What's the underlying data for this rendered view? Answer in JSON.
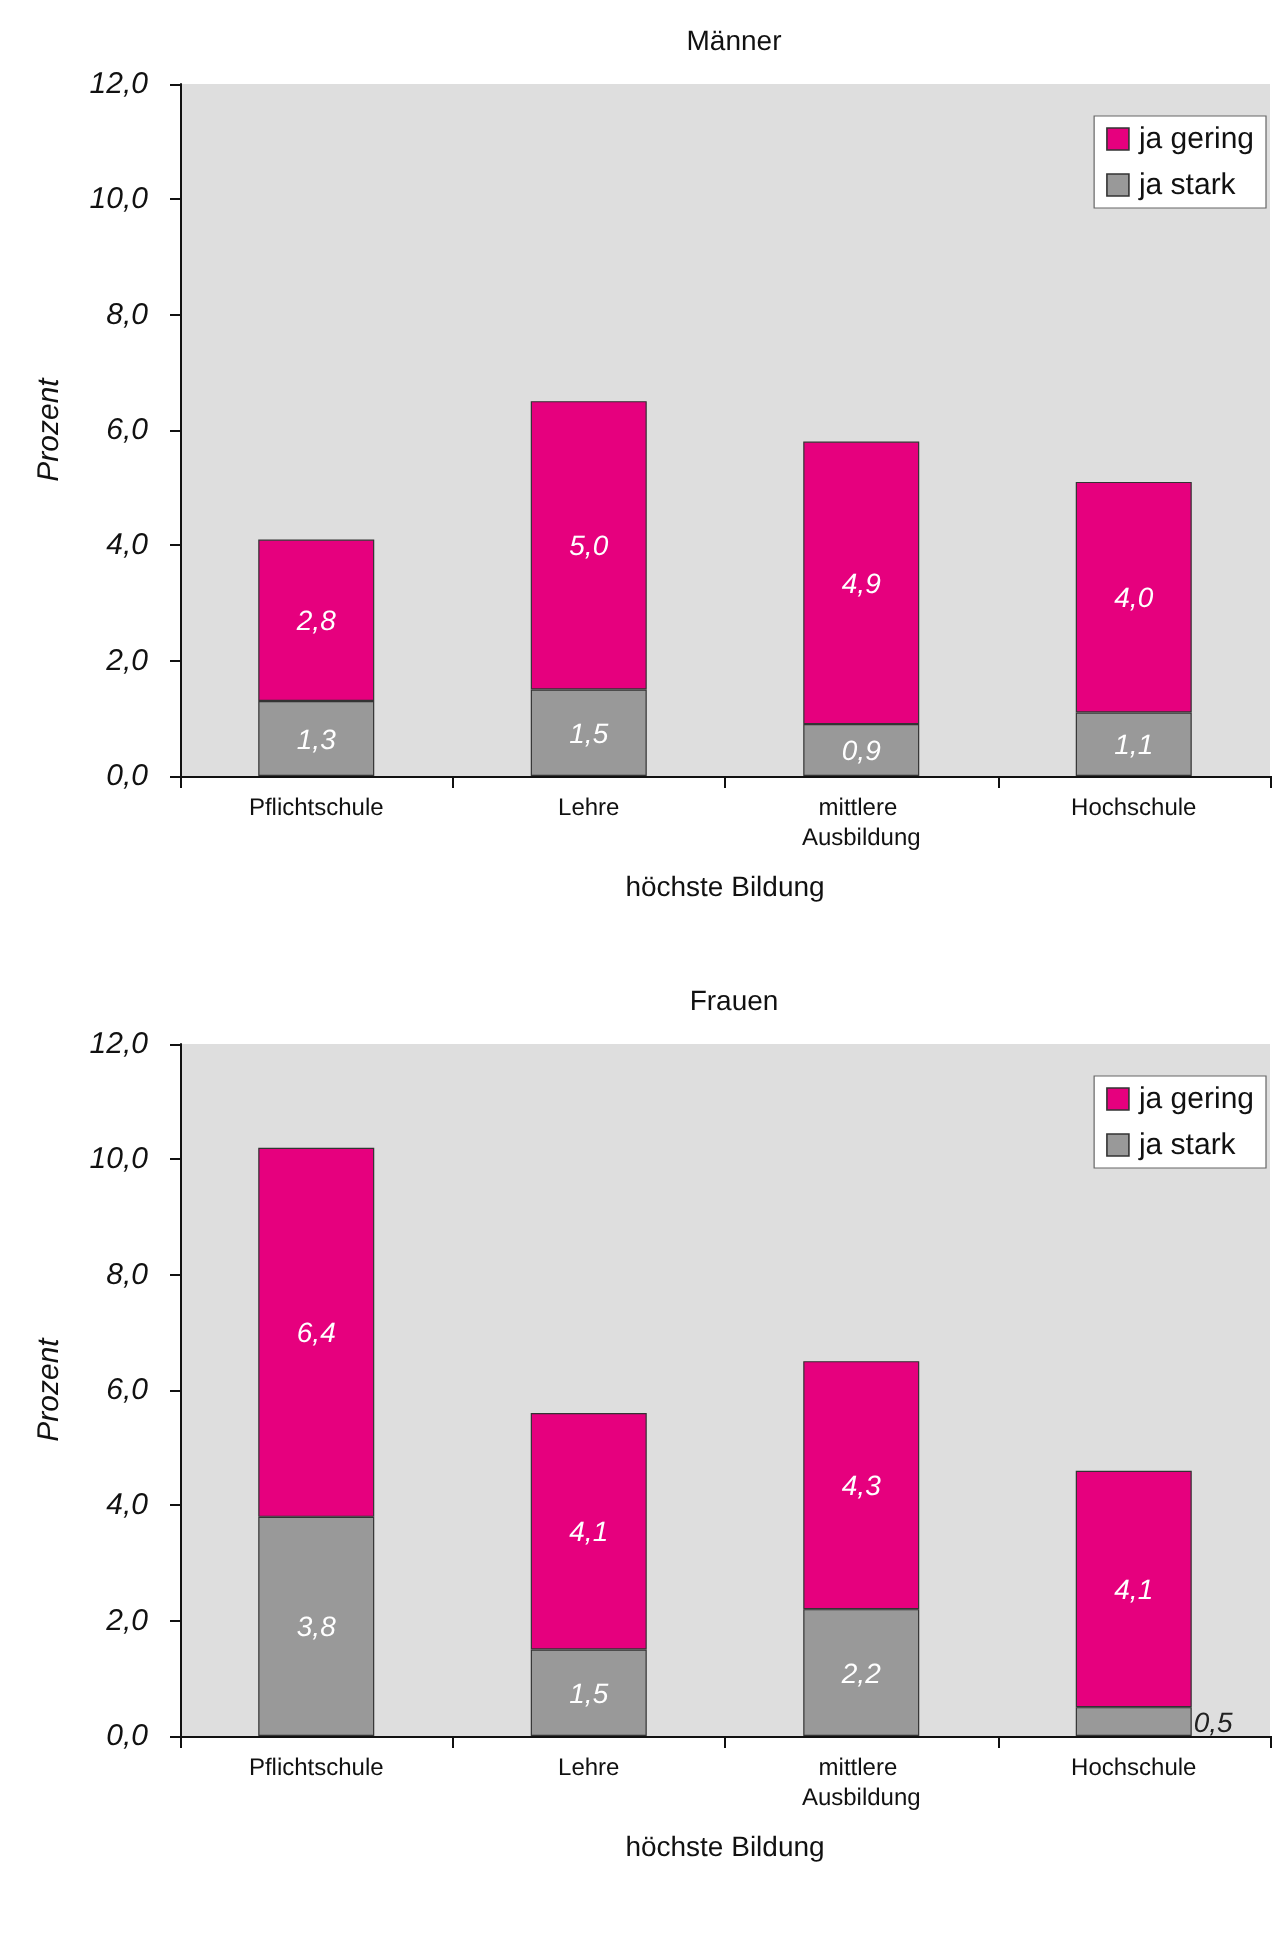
{
  "chart_data": [
    {
      "type": "bar",
      "title": "Männer",
      "xlabel": "höchste Bildung",
      "ylabel": "Prozent",
      "categories": [
        "Pflichtschule",
        "Lehre",
        "mittlere Ausbildung",
        "Hochschule"
      ],
      "stacked": true,
      "ylim": [
        0,
        12
      ],
      "yticks": [
        {
          "value": 0,
          "label": "0,0"
        },
        {
          "value": 2,
          "label": "2,0"
        },
        {
          "value": 4,
          "label": "4,0"
        },
        {
          "value": 6,
          "label": "6,0"
        },
        {
          "value": 8,
          "label": "8,0"
        },
        {
          "value": 10,
          "label": "10,0"
        },
        {
          "value": 12,
          "label": "12,0"
        }
      ],
      "legend": "top right",
      "grid": false,
      "series": [
        {
          "name": "ja stark",
          "color": "#999999",
          "values": [
            1.3,
            1.5,
            0.9,
            1.1
          ],
          "value_labels": [
            "1,3",
            "1,5",
            "0,9",
            "1,1"
          ]
        },
        {
          "name": "ja gering",
          "color": "#e6007e",
          "values": [
            2.8,
            5.0,
            4.9,
            4.0
          ],
          "value_labels": [
            "2,8",
            "5,0",
            "4,9",
            "4,0"
          ]
        }
      ]
    },
    {
      "type": "bar",
      "title": "Frauen",
      "xlabel": "höchste Bildung",
      "ylabel": "Prozent",
      "categories": [
        "Pflichtschule",
        "Lehre",
        "mittlere Ausbildung",
        "Hochschule"
      ],
      "stacked": true,
      "ylim": [
        0,
        12
      ],
      "yticks": [
        {
          "value": 0,
          "label": "0,0"
        },
        {
          "value": 2,
          "label": "2,0"
        },
        {
          "value": 4,
          "label": "4,0"
        },
        {
          "value": 6,
          "label": "6,0"
        },
        {
          "value": 8,
          "label": "8,0"
        },
        {
          "value": 10,
          "label": "10,0"
        },
        {
          "value": 12,
          "label": "12,0"
        }
      ],
      "legend": "top right",
      "grid": false,
      "series": [
        {
          "name": "ja stark",
          "color": "#999999",
          "values": [
            3.8,
            1.5,
            2.2,
            0.5
          ],
          "value_labels": [
            "3,8",
            "1,5",
            "2,2",
            "0,5"
          ]
        },
        {
          "name": "ja gering",
          "color": "#e6007e",
          "values": [
            6.4,
            4.1,
            4.3,
            4.1
          ],
          "value_labels": [
            "6,4",
            "4,1",
            "4,3",
            "4,1"
          ]
        }
      ]
    }
  ]
}
